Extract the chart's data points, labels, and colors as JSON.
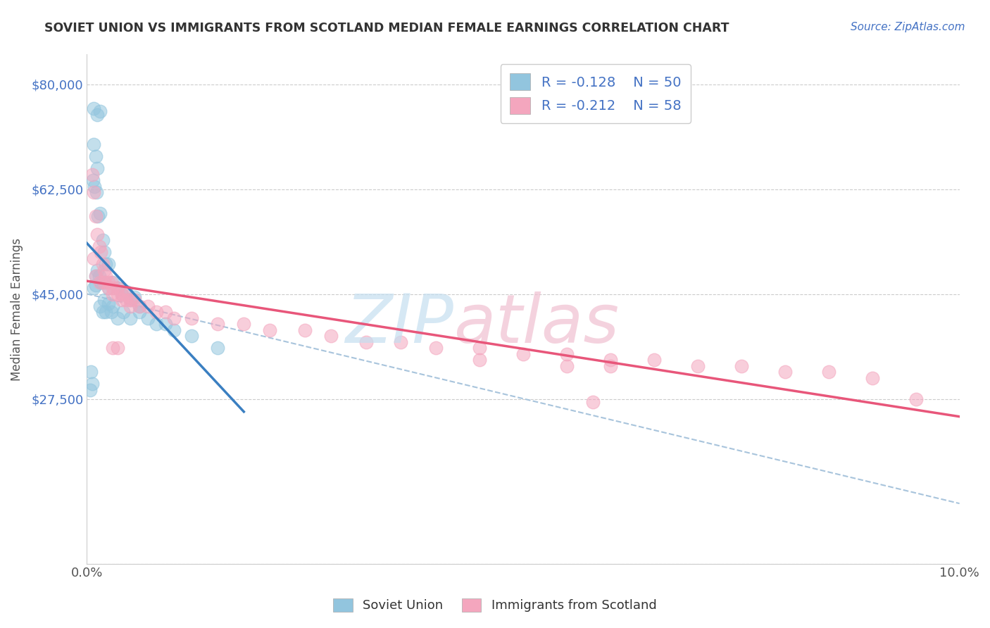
{
  "title": "SOVIET UNION VS IMMIGRANTS FROM SCOTLAND MEDIAN FEMALE EARNINGS CORRELATION CHART",
  "source": "Source: ZipAtlas.com",
  "ylabel": "Median Female Earnings",
  "y_ticks": [
    0,
    27500,
    45000,
    62500,
    80000
  ],
  "y_tick_labels": [
    "",
    "$27,500",
    "$45,000",
    "$62,500",
    "$80,000"
  ],
  "xlim": [
    0.0,
    10.0
  ],
  "ylim": [
    0,
    85000
  ],
  "legend_r1": "-0.128",
  "legend_n1": "50",
  "legend_r2": "-0.212",
  "legend_n2": "58",
  "series1_label": "Soviet Union",
  "series2_label": "Immigrants from Scotland",
  "series1_color": "#92c5de",
  "series2_color": "#f4a6be",
  "series1_line_color": "#3a7fc1",
  "series2_line_color": "#e8567a",
  "dashed_line_color": "#a8c4dc",
  "background_color": "#ffffff",
  "grid_color": "#cccccc",
  "title_color": "#333333",
  "source_color": "#4472c4",
  "axis_label_color": "#4472c4",
  "series1_x": [
    0.08,
    0.12,
    0.15,
    0.08,
    0.1,
    0.12,
    0.07,
    0.09,
    0.11,
    0.13,
    0.15,
    0.18,
    0.2,
    0.22,
    0.25,
    0.1,
    0.12,
    0.14,
    0.16,
    0.08,
    0.1,
    0.2,
    0.25,
    0.3,
    0.35,
    0.4,
    0.45,
    0.5,
    0.55,
    0.6,
    0.3,
    0.2,
    0.25,
    0.15,
    0.18,
    0.22,
    0.28,
    0.35,
    0.42,
    0.5,
    0.6,
    0.7,
    0.8,
    0.9,
    1.0,
    1.2,
    1.5,
    0.05,
    0.06,
    0.04
  ],
  "series1_y": [
    76000,
    75000,
    75500,
    70000,
    68000,
    66000,
    64000,
    63000,
    62000,
    58000,
    58500,
    54000,
    52000,
    50000,
    50000,
    48000,
    49000,
    48000,
    47000,
    46000,
    46500,
    47000,
    46000,
    47000,
    46000,
    45000,
    45500,
    44000,
    44500,
    43000,
    43000,
    44000,
    43500,
    43000,
    42000,
    42000,
    42000,
    41000,
    42000,
    41000,
    42000,
    41000,
    40000,
    40000,
    39000,
    38000,
    36000,
    32000,
    30000,
    29000
  ],
  "series2_x": [
    0.06,
    0.08,
    0.1,
    0.12,
    0.14,
    0.16,
    0.18,
    0.2,
    0.22,
    0.25,
    0.28,
    0.3,
    0.35,
    0.4,
    0.45,
    0.5,
    0.55,
    0.6,
    0.7,
    0.8,
    0.9,
    1.0,
    1.2,
    1.5,
    1.8,
    2.1,
    2.5,
    2.8,
    3.2,
    3.6,
    4.0,
    4.5,
    5.0,
    5.5,
    6.0,
    6.5,
    7.0,
    7.5,
    8.0,
    8.5,
    9.0,
    9.5,
    0.08,
    0.1,
    0.15,
    0.2,
    0.25,
    0.3,
    0.35,
    0.4,
    0.45,
    0.5,
    0.35,
    0.3,
    4.5,
    5.5,
    6.0,
    5.8
  ],
  "series2_y": [
    65000,
    62000,
    58000,
    55000,
    53000,
    52000,
    50000,
    49000,
    48000,
    47000,
    47000,
    46000,
    46000,
    45000,
    45000,
    44000,
    44000,
    43000,
    43000,
    42000,
    42000,
    41000,
    41000,
    40000,
    40000,
    39000,
    39000,
    38000,
    37000,
    37000,
    36000,
    36000,
    35000,
    35000,
    34000,
    34000,
    33000,
    33000,
    32000,
    32000,
    31000,
    27500,
    51000,
    48000,
    47000,
    47000,
    46000,
    45000,
    45000,
    44000,
    44000,
    43000,
    36000,
    36000,
    34000,
    33000,
    33000,
    27000
  ]
}
